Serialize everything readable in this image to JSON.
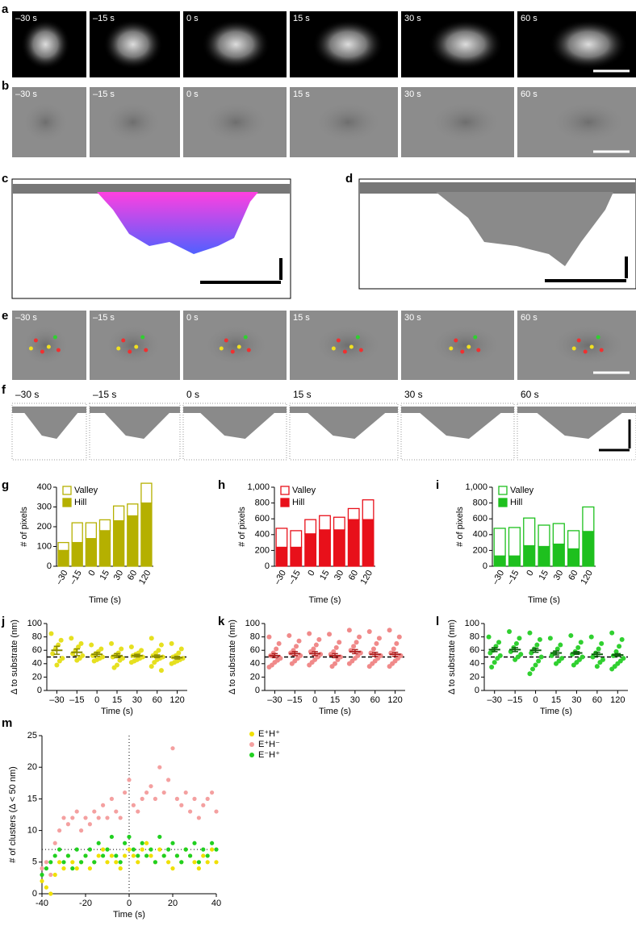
{
  "panel_labels": [
    "a",
    "b",
    "c",
    "d",
    "e",
    "f",
    "g",
    "h",
    "i",
    "j",
    "k",
    "l",
    "m"
  ],
  "image_panels": {
    "times": [
      "–30 s",
      "–15 s",
      "0 s",
      "15 s",
      "30 s",
      "60 s"
    ]
  },
  "chart_data": [
    {
      "type": "bar",
      "xlabel": "Time (s)",
      "ylabel": "# of pixels",
      "categories": [
        "–30",
        "–15",
        "0",
        "15",
        "30",
        "60",
        "120"
      ],
      "series": [
        {
          "name": "Valley",
          "color": "#b5b000",
          "style": "hollow",
          "values": [
            40,
            100,
            80,
            55,
            75,
            60,
            100
          ]
        },
        {
          "name": "Hill",
          "color": "#b5b000",
          "style": "solid",
          "values": [
            80,
            120,
            140,
            180,
            230,
            255,
            320
          ]
        }
      ],
      "ylim": [
        0,
        400
      ],
      "yticks": [
        0,
        100,
        200,
        300,
        400
      ]
    },
    {
      "type": "bar",
      "xlabel": "Time (s)",
      "ylabel": "# of pixels",
      "categories": [
        "–30",
        "–15",
        "0",
        "15",
        "30",
        "60",
        "120"
      ],
      "series": [
        {
          "name": "Valley",
          "color": "#e8101a",
          "style": "hollow",
          "values": [
            240,
            210,
            180,
            180,
            160,
            140,
            250
          ]
        },
        {
          "name": "Hill",
          "color": "#e8101a",
          "style": "solid",
          "values": [
            240,
            240,
            410,
            460,
            460,
            590,
            590
          ]
        }
      ],
      "ylim": [
        0,
        1000
      ],
      "yticks": [
        0,
        200,
        400,
        600,
        800,
        {
          "value": 1000,
          "label": "1,000"
        }
      ]
    },
    {
      "type": "bar",
      "xlabel": "Time (s)",
      "ylabel": "# of pixels",
      "categories": [
        "–30",
        "–15",
        "0",
        "15",
        "30",
        "60",
        "120"
      ],
      "series": [
        {
          "name": "Valley",
          "color": "#1ec01e",
          "style": "hollow",
          "values": [
            350,
            360,
            350,
            270,
            260,
            230,
            310
          ]
        },
        {
          "name": "Hill",
          "color": "#1ec01e",
          "style": "solid",
          "values": [
            130,
            130,
            260,
            250,
            280,
            220,
            440
          ]
        }
      ],
      "ylim": [
        0,
        1000
      ],
      "yticks": [
        0,
        200,
        400,
        600,
        800,
        {
          "value": 1000,
          "label": "1,000"
        }
      ]
    },
    {
      "type": "dot",
      "xlabel": "Time (s)",
      "ylabel": "Δ to substrate (nm)",
      "color": "#e6e020",
      "mean_color": "#8a8a00",
      "categories": [
        "–30",
        "–15",
        "0",
        "15",
        "30",
        "60",
        "120"
      ],
      "points": [
        [
          85,
          75,
          68,
          62,
          55,
          48,
          44,
          38
        ],
        [
          78,
          70,
          65,
          60,
          55,
          52,
          48,
          45
        ],
        [
          68,
          62,
          58,
          55,
          52,
          50,
          48,
          46,
          44
        ],
        [
          70,
          62,
          56,
          53,
          50,
          48,
          45,
          38,
          34
        ],
        [
          65,
          60,
          56,
          54,
          52,
          50,
          48,
          46,
          44,
          42
        ],
        [
          78,
          68,
          60,
          56,
          52,
          50,
          48,
          46,
          42,
          36,
          30
        ],
        [
          70,
          62,
          56,
          52,
          50,
          48,
          46,
          44,
          42,
          40
        ]
      ],
      "mean": [
        60,
        57,
        54,
        52,
        52,
        51,
        49
      ],
      "sem": [
        6,
        5,
        3,
        3,
        2,
        2,
        2
      ],
      "reference_line": 50,
      "ylim": [
        0,
        100
      ],
      "yticks": [
        0,
        20,
        40,
        60,
        80,
        100
      ]
    },
    {
      "type": "dot",
      "xlabel": "Time (s)",
      "ylabel": "Δ to substrate (nm)",
      "color": "#f08a8a",
      "mean_color": "#b02020",
      "categories": [
        "–30",
        "–15",
        "0",
        "15",
        "30",
        "60",
        "120"
      ],
      "points": [
        [
          80,
          70,
          62,
          56,
          52,
          48,
          45,
          42,
          38,
          35
        ],
        [
          82,
          74,
          66,
          60,
          56,
          52,
          48,
          44,
          40
        ],
        [
          85,
          76,
          68,
          62,
          58,
          54,
          50,
          46,
          42,
          38
        ],
        [
          84,
          72,
          64,
          58,
          54,
          50,
          46,
          40,
          36
        ],
        [
          90,
          80,
          72,
          66,
          60,
          56,
          52,
          48,
          44,
          40
        ],
        [
          88,
          78,
          70,
          62,
          56,
          52,
          48,
          44,
          40,
          36
        ],
        [
          90,
          80,
          70,
          62,
          56,
          52,
          48,
          44,
          40,
          36
        ]
      ],
      "mean": [
        52,
        55,
        55,
        52,
        58,
        54,
        54
      ],
      "sem": [
        3,
        3,
        3,
        3,
        3,
        3,
        3
      ],
      "reference_line": 50,
      "ylim": [
        0,
        100
      ],
      "yticks": [
        0,
        20,
        40,
        60,
        80,
        100
      ]
    },
    {
      "type": "dot",
      "xlabel": "Time (s)",
      "ylabel": "Δ to substrate (nm)",
      "color": "#30d030",
      "mean_color": "#106010",
      "categories": [
        "–30",
        "–15",
        "0",
        "15",
        "30",
        "60",
        "120"
      ],
      "points": [
        [
          80,
          72,
          66,
          60,
          56,
          52,
          48,
          42,
          35
        ],
        [
          88,
          78,
          70,
          64,
          58,
          54,
          50,
          46
        ],
        [
          86,
          76,
          68,
          62,
          56,
          50,
          44,
          38,
          32,
          25
        ],
        [
          78,
          68,
          62,
          56,
          52,
          48,
          44,
          40
        ],
        [
          82,
          72,
          64,
          58,
          54,
          50,
          46,
          42,
          38
        ],
        [
          80,
          70,
          62,
          56,
          50,
          46,
          42,
          36
        ],
        [
          86,
          76,
          66,
          58,
          52,
          48,
          44,
          40,
          36,
          32
        ]
      ],
      "mean": [
        61,
        61,
        60,
        56,
        56,
        54,
        53
      ],
      "sem": [
        3,
        3,
        3,
        3,
        2,
        3,
        2
      ],
      "reference_line": 50,
      "ylim": [
        0,
        100
      ],
      "yticks": [
        0,
        20,
        40,
        60,
        80,
        100
      ]
    },
    {
      "type": "scatter",
      "xlabel": "Time (s)",
      "ylabel": "# of clusters (Δ < 50 nm)",
      "x": [
        -40,
        -38,
        -36,
        -34,
        -32,
        -30,
        -28,
        -26,
        -24,
        -22,
        -20,
        -18,
        -16,
        -14,
        -12,
        -10,
        -8,
        -6,
        -4,
        -2,
        0,
        2,
        4,
        6,
        8,
        10,
        12,
        14,
        16,
        18,
        20,
        22,
        24,
        26,
        28,
        30,
        32,
        34,
        36,
        38,
        40
      ],
      "series": [
        {
          "name": "E⁺H⁺",
          "color": "#f0e000",
          "values": [
            2,
            1,
            0,
            3,
            5,
            4,
            6,
            5,
            4,
            5,
            6,
            4,
            5,
            6,
            7,
            5,
            6,
            5,
            4,
            6,
            7,
            6,
            5,
            7,
            8,
            6,
            5,
            7,
            6,
            5,
            4,
            6,
            5,
            7,
            6,
            5,
            4,
            6,
            5,
            7,
            5
          ]
        },
        {
          "name": "E⁺H⁻",
          "color": "#f4a0a0",
          "values": [
            4,
            5,
            3,
            8,
            10,
            12,
            11,
            12,
            13,
            10,
            12,
            11,
            13,
            12,
            14,
            12,
            15,
            13,
            12,
            16,
            18,
            14,
            13,
            15,
            16,
            17,
            15,
            20,
            16,
            18,
            23,
            15,
            14,
            16,
            13,
            15,
            12,
            14,
            15,
            16,
            13
          ]
        },
        {
          "name": "E⁻H⁺",
          "color": "#20d020",
          "values": [
            3,
            4,
            5,
            6,
            7,
            5,
            6,
            4,
            7,
            5,
            6,
            7,
            5,
            8,
            6,
            7,
            9,
            6,
            5,
            8,
            9,
            7,
            6,
            8,
            6,
            7,
            5,
            9,
            6,
            7,
            8,
            6,
            5,
            7,
            6,
            8,
            5,
            7,
            6,
            8,
            7
          ]
        }
      ],
      "vline": 0,
      "hline": 7,
      "xlim": [
        -40,
        40
      ],
      "xticks": [
        -40,
        -20,
        0,
        20,
        40
      ],
      "ylim": [
        0,
        25
      ],
      "yticks": [
        0,
        5,
        10,
        15,
        20,
        25
      ]
    }
  ]
}
